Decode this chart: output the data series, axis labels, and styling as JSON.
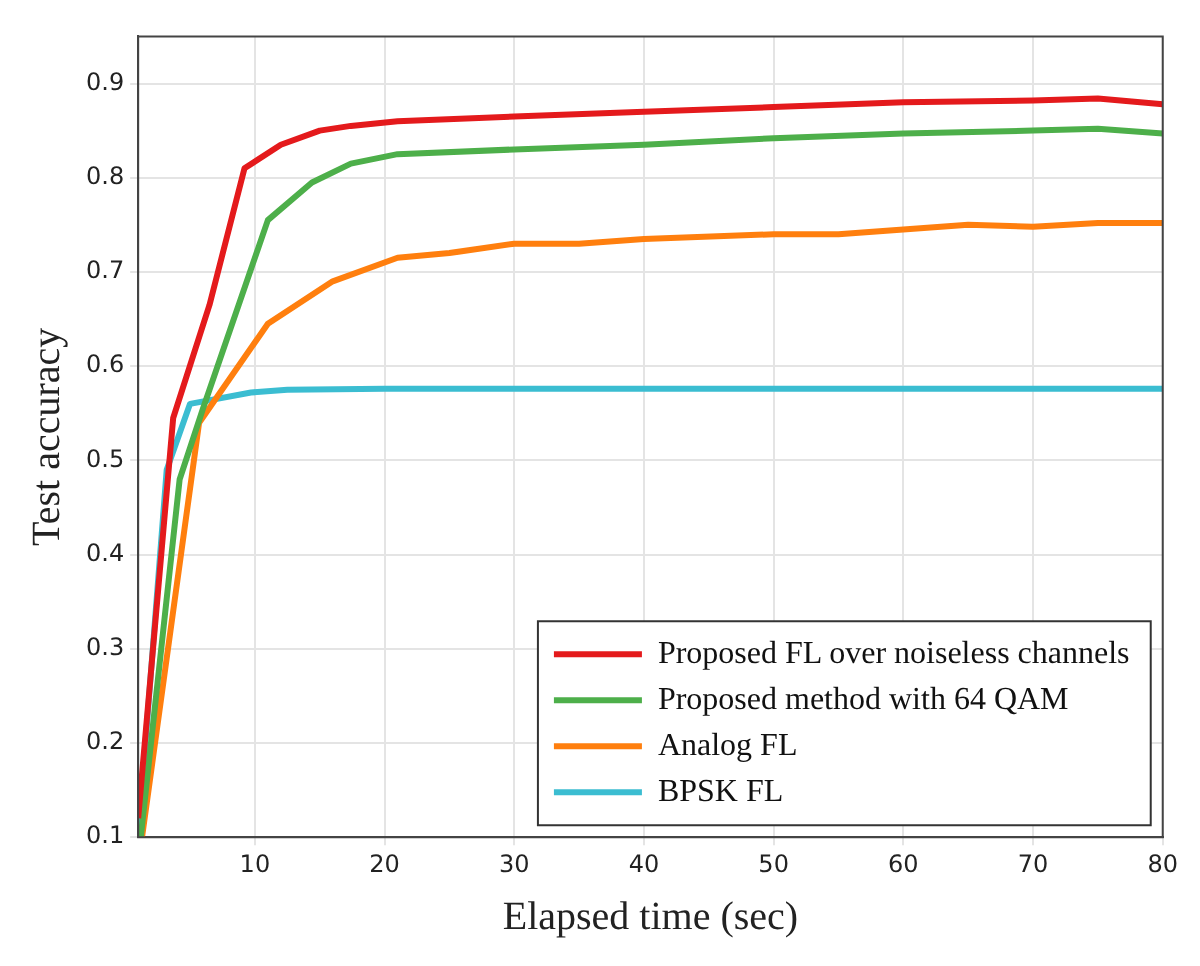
{
  "chart_data": {
    "type": "line",
    "xlabel": "Elapsed time (sec)",
    "ylabel": "Test accuracy",
    "xlim": [
      1,
      80
    ],
    "ylim": [
      0.1,
      0.95
    ],
    "xticks": [
      10,
      20,
      30,
      40,
      50,
      60,
      70,
      80
    ],
    "yticks": [
      0.1,
      0.2,
      0.3,
      0.4,
      0.5,
      0.6,
      0.7,
      0.8,
      0.9
    ],
    "grid": true,
    "legend": "bottom right",
    "marker": "none",
    "line_style": "solid",
    "series": [
      {
        "name": "Proposed FL over noiseless channels",
        "color": "#e41a1c",
        "x": [
          1,
          3.7,
          6.5,
          9.2,
          12,
          15,
          17.4,
          21,
          30,
          40,
          50,
          60,
          70,
          75,
          80
        ],
        "values": [
          0.12,
          0.545,
          0.665,
          0.81,
          0.835,
          0.85,
          0.855,
          0.86,
          0.865,
          0.87,
          0.875,
          0.88,
          0.882,
          0.884,
          0.878
        ]
      },
      {
        "name": "Proposed method with 64 QAM",
        "color": "#4daf4a",
        "x": [
          1.2,
          4.2,
          6,
          11,
          14.4,
          17.4,
          21,
          30,
          40,
          50,
          60,
          70,
          75,
          80
        ],
        "values": [
          0.1,
          0.48,
          0.555,
          0.755,
          0.795,
          0.815,
          0.825,
          0.83,
          0.835,
          0.842,
          0.847,
          0.85,
          0.852,
          0.847
        ]
      },
      {
        "name": "Analog FL",
        "color": "#ff7f0e",
        "x": [
          1.3,
          5.7,
          11,
          16,
          21,
          25,
          30,
          35,
          40,
          50,
          55,
          60,
          65,
          70,
          75,
          80
        ],
        "values": [
          0.1,
          0.54,
          0.645,
          0.69,
          0.715,
          0.72,
          0.73,
          0.73,
          0.735,
          0.74,
          0.74,
          0.745,
          0.75,
          0.748,
          0.752,
          0.752
        ]
      },
      {
        "name": "BPSK FL",
        "color": "#3bbdd1",
        "x": [
          1,
          3.2,
          5,
          9.7,
          12.5,
          20,
          40,
          60,
          80
        ],
        "values": [
          0.1,
          0.49,
          0.56,
          0.572,
          0.575,
          0.576,
          0.576,
          0.576,
          0.576
        ]
      }
    ]
  }
}
